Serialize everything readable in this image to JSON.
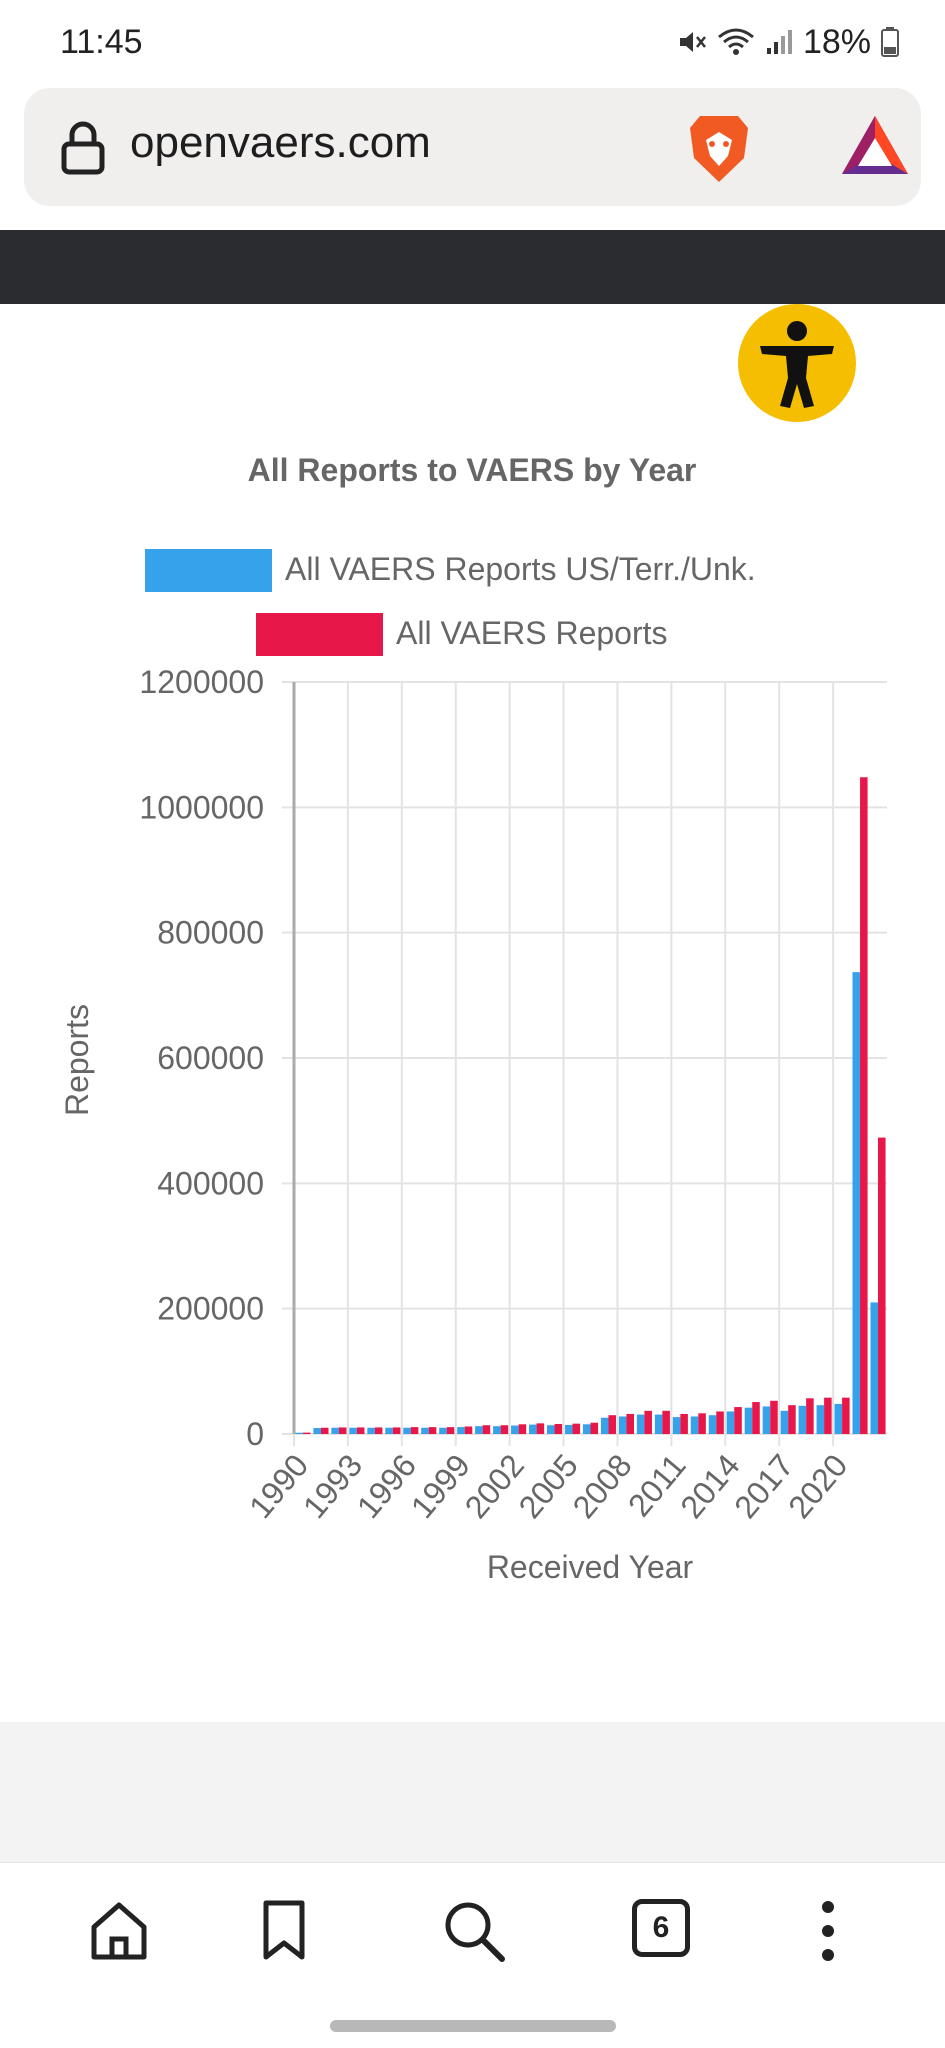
{
  "status": {
    "time": "11:45",
    "battery": "18%"
  },
  "browser": {
    "url": "openvaers.com",
    "tab_count": "6"
  },
  "chart_data": {
    "type": "bar",
    "title": "All Reports to VAERS by Year",
    "xlabel": "Received Year",
    "ylabel": "Reports",
    "ylim": [
      0,
      1200000
    ],
    "yticks": [
      "0",
      "200000",
      "400000",
      "600000",
      "800000",
      "1000000",
      "1200000"
    ],
    "tick_labels": [
      "1990",
      "1993",
      "1996",
      "1999",
      "2002",
      "2005",
      "2008",
      "2011",
      "2014",
      "2017",
      "2020"
    ],
    "categories": [
      "1990",
      "1991",
      "1992",
      "1993",
      "1994",
      "1995",
      "1996",
      "1997",
      "1998",
      "1999",
      "2000",
      "2001",
      "2002",
      "2003",
      "2004",
      "2005",
      "2006",
      "2007",
      "2008",
      "2009",
      "2010",
      "2011",
      "2012",
      "2013",
      "2014",
      "2015",
      "2016",
      "2017",
      "2018",
      "2019",
      "2020",
      "2021",
      "2022"
    ],
    "legend_position": "top",
    "series": [
      {
        "name": "All VAERS Reports US/Terr./Unk.",
        "color": "#36a2eb",
        "values": [
          2000,
          9500,
          10000,
          10000,
          10000,
          10000,
          10000,
          10000,
          10000,
          11000,
          12500,
          12500,
          13500,
          15000,
          14000,
          14500,
          15500,
          26000,
          28000,
          31000,
          31000,
          27000,
          28000,
          30000,
          36000,
          42000,
          44000,
          37000,
          45000,
          46000,
          48000,
          737000,
          210000
        ]
      },
      {
        "name": "All VAERS Reports",
        "color": "#e8174a",
        "values": [
          2200,
          10000,
          10500,
          10500,
          10500,
          10500,
          11000,
          11000,
          11000,
          12000,
          14000,
          14000,
          15500,
          17000,
          16000,
          16500,
          18000,
          30000,
          32000,
          37000,
          37000,
          32000,
          33000,
          36000,
          43000,
          51000,
          53000,
          46000,
          57000,
          58000,
          58000,
          1048000,
          473000
        ]
      }
    ]
  },
  "colors": {
    "accessibility_badge": "#f6be00",
    "dark_band": "#2b2c30"
  }
}
